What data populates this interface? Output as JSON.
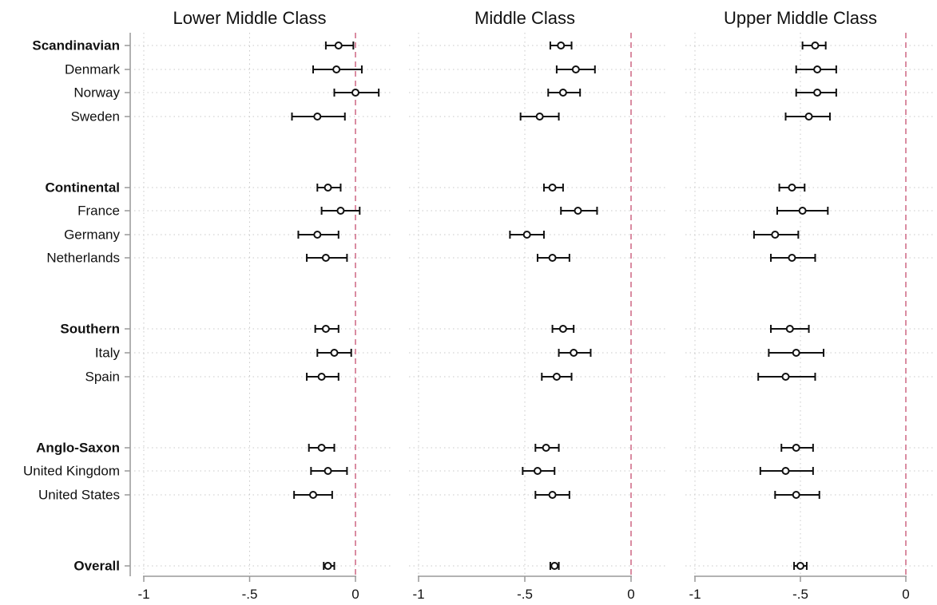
{
  "chart_data": {
    "type": "scatter",
    "subtype": "coefficient-plot-with-confidence-intervals",
    "panels": [
      "Lower Middle Class",
      "Middle Class",
      "Upper Middle Class"
    ],
    "xlim": [
      -1,
      0
    ],
    "xticks": [
      -1,
      -0.5,
      0
    ],
    "xtick_labels": [
      "-1",
      "-.5",
      "0"
    ],
    "reference_line": {
      "x": 0,
      "style": "dashed",
      "color": "#d0708a"
    },
    "grid": true,
    "legend": "none",
    "rows": [
      {
        "label": "Scandinavian",
        "group": true,
        "values": [
          {
            "est": -0.08,
            "lo": -0.14,
            "hi": -0.01
          },
          {
            "est": -0.33,
            "lo": -0.38,
            "hi": -0.28
          },
          {
            "est": -0.43,
            "lo": -0.49,
            "hi": -0.38
          }
        ]
      },
      {
        "label": "Denmark",
        "group": false,
        "values": [
          {
            "est": -0.09,
            "lo": -0.2,
            "hi": 0.03
          },
          {
            "est": -0.26,
            "lo": -0.35,
            "hi": -0.17
          },
          {
            "est": -0.42,
            "lo": -0.52,
            "hi": -0.33
          }
        ]
      },
      {
        "label": "Norway",
        "group": false,
        "values": [
          {
            "est": 0.0,
            "lo": -0.1,
            "hi": 0.11
          },
          {
            "est": -0.32,
            "lo": -0.39,
            "hi": -0.24
          },
          {
            "est": -0.42,
            "lo": -0.52,
            "hi": -0.33
          }
        ]
      },
      {
        "label": "Sweden",
        "group": false,
        "values": [
          {
            "est": -0.18,
            "lo": -0.3,
            "hi": -0.05
          },
          {
            "est": -0.43,
            "lo": -0.52,
            "hi": -0.34
          },
          {
            "est": -0.46,
            "lo": -0.57,
            "hi": -0.36
          }
        ]
      },
      {
        "label": "Continental",
        "group": true,
        "values": [
          {
            "est": -0.13,
            "lo": -0.18,
            "hi": -0.07
          },
          {
            "est": -0.37,
            "lo": -0.41,
            "hi": -0.32
          },
          {
            "est": -0.54,
            "lo": -0.6,
            "hi": -0.48
          }
        ]
      },
      {
        "label": "France",
        "group": false,
        "values": [
          {
            "est": -0.07,
            "lo": -0.16,
            "hi": 0.02
          },
          {
            "est": -0.25,
            "lo": -0.33,
            "hi": -0.16
          },
          {
            "est": -0.49,
            "lo": -0.61,
            "hi": -0.37
          }
        ]
      },
      {
        "label": "Germany",
        "group": false,
        "values": [
          {
            "est": -0.18,
            "lo": -0.27,
            "hi": -0.08
          },
          {
            "est": -0.49,
            "lo": -0.57,
            "hi": -0.41
          },
          {
            "est": -0.62,
            "lo": -0.72,
            "hi": -0.51
          }
        ]
      },
      {
        "label": "Netherlands",
        "group": false,
        "values": [
          {
            "est": -0.14,
            "lo": -0.23,
            "hi": -0.04
          },
          {
            "est": -0.37,
            "lo": -0.44,
            "hi": -0.29
          },
          {
            "est": -0.54,
            "lo": -0.64,
            "hi": -0.43
          }
        ]
      },
      {
        "label": "Southern",
        "group": true,
        "values": [
          {
            "est": -0.14,
            "lo": -0.19,
            "hi": -0.08
          },
          {
            "est": -0.32,
            "lo": -0.37,
            "hi": -0.27
          },
          {
            "est": -0.55,
            "lo": -0.64,
            "hi": -0.46
          }
        ]
      },
      {
        "label": "Italy",
        "group": false,
        "values": [
          {
            "est": -0.1,
            "lo": -0.18,
            "hi": -0.02
          },
          {
            "est": -0.27,
            "lo": -0.34,
            "hi": -0.19
          },
          {
            "est": -0.52,
            "lo": -0.65,
            "hi": -0.39
          }
        ]
      },
      {
        "label": "Spain",
        "group": false,
        "values": [
          {
            "est": -0.16,
            "lo": -0.23,
            "hi": -0.08
          },
          {
            "est": -0.35,
            "lo": -0.42,
            "hi": -0.28
          },
          {
            "est": -0.57,
            "lo": -0.7,
            "hi": -0.43
          }
        ]
      },
      {
        "label": "Anglo-Saxon",
        "group": true,
        "values": [
          {
            "est": -0.16,
            "lo": -0.22,
            "hi": -0.1
          },
          {
            "est": -0.4,
            "lo": -0.45,
            "hi": -0.34
          },
          {
            "est": -0.52,
            "lo": -0.59,
            "hi": -0.44
          }
        ]
      },
      {
        "label": "United Kingdom",
        "group": false,
        "values": [
          {
            "est": -0.13,
            "lo": -0.21,
            "hi": -0.04
          },
          {
            "est": -0.44,
            "lo": -0.51,
            "hi": -0.36
          },
          {
            "est": -0.57,
            "lo": -0.69,
            "hi": -0.44
          }
        ]
      },
      {
        "label": "United States",
        "group": false,
        "values": [
          {
            "est": -0.2,
            "lo": -0.29,
            "hi": -0.11
          },
          {
            "est": -0.37,
            "lo": -0.45,
            "hi": -0.29
          },
          {
            "est": -0.52,
            "lo": -0.62,
            "hi": -0.41
          }
        ]
      },
      {
        "label": "Overall",
        "group": true,
        "values": [
          {
            "est": -0.13,
            "lo": -0.15,
            "hi": -0.1
          },
          {
            "est": -0.36,
            "lo": -0.38,
            "hi": -0.34
          },
          {
            "est": -0.5,
            "lo": -0.53,
            "hi": -0.47
          }
        ]
      }
    ]
  }
}
